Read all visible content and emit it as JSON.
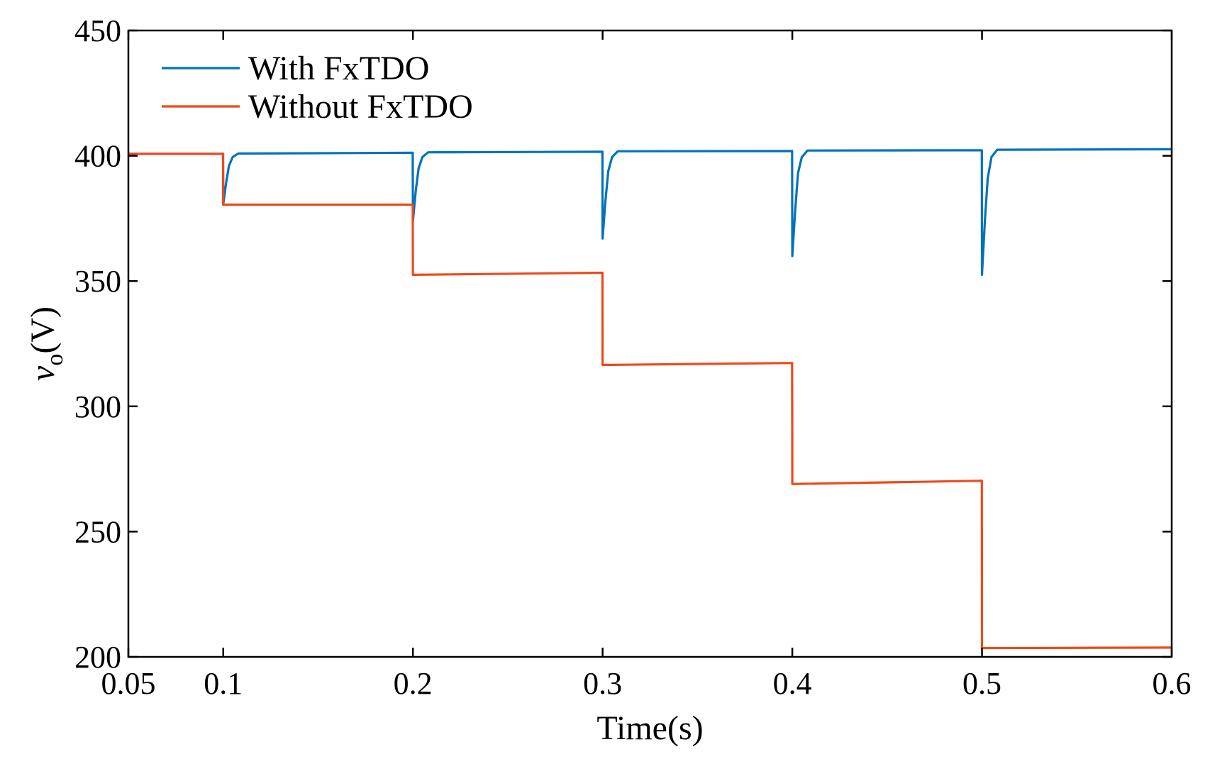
{
  "chart_data": {
    "type": "line",
    "title": "",
    "xlabel": "Time(s)",
    "ylabel": {
      "main": "v",
      "subscript": "o",
      "unit": "(V)"
    },
    "xlim": [
      0.05,
      0.6
    ],
    "ylim": [
      200,
      450
    ],
    "xticks": [
      0.05,
      0.1,
      0.2,
      0.3,
      0.4,
      0.5,
      0.6
    ],
    "xtick_labels": [
      "0.05",
      "0.1",
      "0.2",
      "0.3",
      "0.4",
      "0.5",
      "0.6"
    ],
    "yticks": [
      200,
      250,
      300,
      350,
      400,
      450
    ],
    "ytick_labels": [
      "200",
      "250",
      "300",
      "350",
      "400",
      "450"
    ],
    "grid": false,
    "legend_position": "top-left",
    "series": [
      {
        "name": "With FxTDO",
        "color": "#0072BD",
        "points": [
          [
            0.05,
            400.8
          ],
          [
            0.0999,
            400.8
          ],
          [
            0.1,
            380.5
          ],
          [
            0.1015,
            389
          ],
          [
            0.103,
            396
          ],
          [
            0.105,
            399.5
          ],
          [
            0.108,
            400.9
          ],
          [
            0.1999,
            401.2
          ],
          [
            0.2,
            374
          ],
          [
            0.2015,
            386
          ],
          [
            0.203,
            395
          ],
          [
            0.205,
            399.5
          ],
          [
            0.208,
            401.4
          ],
          [
            0.2999,
            401.6
          ],
          [
            0.3,
            367
          ],
          [
            0.3015,
            382
          ],
          [
            0.303,
            394
          ],
          [
            0.305,
            399.5
          ],
          [
            0.308,
            401.8
          ],
          [
            0.3999,
            401.9
          ],
          [
            0.4,
            360
          ],
          [
            0.4015,
            378
          ],
          [
            0.403,
            393
          ],
          [
            0.405,
            399.5
          ],
          [
            0.408,
            402.1
          ],
          [
            0.4999,
            402.2
          ],
          [
            0.5,
            352.5
          ],
          [
            0.5015,
            374
          ],
          [
            0.503,
            391
          ],
          [
            0.505,
            399.5
          ],
          [
            0.508,
            402.4
          ],
          [
            0.6,
            402.6
          ]
        ]
      },
      {
        "name": "Without FxTDO",
        "color": "#EE4A1A",
        "points": [
          [
            0.05,
            400.8
          ],
          [
            0.0999,
            400.8
          ],
          [
            0.1,
            380.5
          ],
          [
            0.1999,
            380.5
          ],
          [
            0.2,
            352.5
          ],
          [
            0.2999,
            353.3
          ],
          [
            0.3,
            316.5
          ],
          [
            0.3999,
            317.3
          ],
          [
            0.4,
            269
          ],
          [
            0.4999,
            270.3
          ],
          [
            0.5,
            203.5
          ],
          [
            0.6,
            203.7
          ]
        ]
      }
    ]
  }
}
